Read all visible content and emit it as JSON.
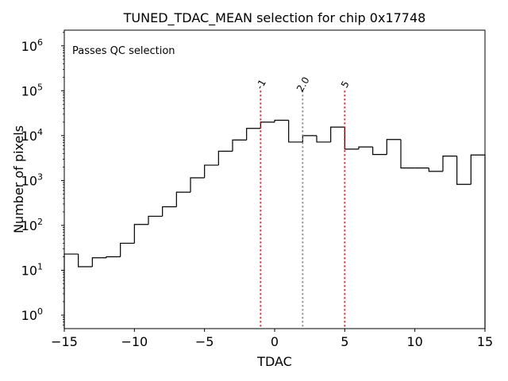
{
  "chart_data": {
    "type": "histogram",
    "title": "TUNED_TDAC_MEAN selection for chip 0x17748",
    "xlabel": "TDAC",
    "ylabel": "Number of pixels",
    "xlim": [
      -15,
      15
    ],
    "ylim_log10": [
      -0.3,
      6.35
    ],
    "yscale": "log",
    "x_ticks": [
      {
        "value": -15,
        "label": "−15"
      },
      {
        "value": -10,
        "label": "−10"
      },
      {
        "value": -5,
        "label": "−5"
      },
      {
        "value": 0,
        "label": "0"
      },
      {
        "value": 5,
        "label": "5"
      },
      {
        "value": 10,
        "label": "10"
      },
      {
        "value": 15,
        "label": "15"
      }
    ],
    "y_ticks": [
      {
        "exp": 0,
        "base": "10",
        "power": "0"
      },
      {
        "exp": 1,
        "base": "10",
        "power": "1"
      },
      {
        "exp": 2,
        "base": "10",
        "power": "2"
      },
      {
        "exp": 3,
        "base": "10",
        "power": "3"
      },
      {
        "exp": 4,
        "base": "10",
        "power": "4"
      },
      {
        "exp": 5,
        "base": "10",
        "power": "5"
      },
      {
        "exp": 6,
        "base": "10",
        "power": "6"
      }
    ],
    "bin_edges": [
      -15,
      -14,
      -13,
      -12,
      -11,
      -10,
      -9,
      -8,
      -7,
      -6,
      -5,
      -4,
      -3,
      -2,
      -1,
      0,
      1,
      2,
      3,
      4,
      5,
      6,
      7,
      8,
      9,
      10,
      11,
      12,
      13,
      14,
      15
    ],
    "counts": [
      23,
      12,
      19,
      20,
      40,
      105,
      160,
      260,
      550,
      1150,
      2200,
      4500,
      8000,
      14500,
      20000,
      22000,
      7200,
      10000,
      7200,
      15500,
      5000,
      5600,
      3800,
      8200,
      1900,
      1900,
      1600,
      3500,
      820,
      3700
    ],
    "vlines": [
      {
        "x": -1,
        "label": "-1",
        "color": "#ff0000"
      },
      {
        "x": 2,
        "label": "2.0",
        "color": "#808080"
      },
      {
        "x": 5,
        "label": "5",
        "color": "#ff0000"
      }
    ],
    "vline_top": 100000,
    "annotation": {
      "text": "Passes QC selection",
      "color": "#008000"
    },
    "colors": {
      "hist": "#000000"
    }
  }
}
